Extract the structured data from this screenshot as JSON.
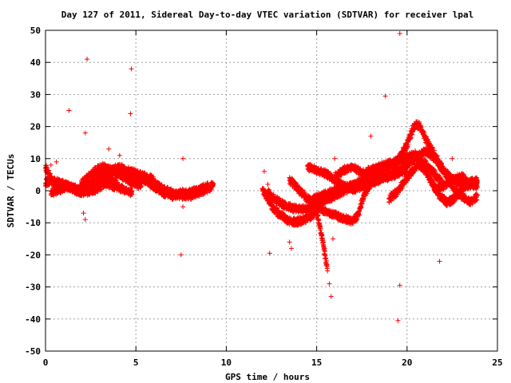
{
  "chart_data": {
    "type": "scatter",
    "title": "Day 127 of 2011, Sidereal Day-to-day VTEC variation (SDTVAR) for receiver lpal",
    "xlabel": "GPS time / hours",
    "ylabel": "SDTVAR / TECUs",
    "xlim": [
      0,
      25
    ],
    "ylim": [
      -50,
      50
    ],
    "xticks": [
      0,
      5,
      10,
      15,
      20,
      25
    ],
    "yticks": [
      -50,
      -40,
      -30,
      -20,
      -10,
      0,
      10,
      20,
      30,
      40,
      50
    ],
    "grid": true,
    "marker": "+",
    "color": "#ff0000",
    "tracks": [
      {
        "x": [
          0.0,
          0.5,
          1.0,
          1.5,
          2.0,
          2.5,
          3.0,
          3.5,
          4.0,
          4.5,
          5.0,
          5.5,
          6.0
        ],
        "y": [
          7,
          1,
          2,
          0,
          -1,
          1,
          3,
          5,
          7,
          6,
          5,
          4,
          3
        ]
      },
      {
        "x": [
          0.3,
          0.8,
          1.3,
          1.8,
          2.3,
          2.8,
          3.3,
          3.8,
          4.3,
          4.8,
          5.3
        ],
        "y": [
          -1,
          0,
          1,
          0,
          2,
          3,
          5,
          6,
          4,
          2,
          1
        ]
      },
      {
        "x": [
          0.0,
          0.4,
          0.8,
          1.2,
          1.6,
          2.0,
          2.4,
          2.8,
          3.2,
          3.6,
          4.0
        ],
        "y": [
          2,
          3,
          2,
          1,
          0,
          -1,
          0,
          1,
          2,
          3,
          2
        ]
      },
      {
        "x": [
          2.0,
          2.4,
          2.8,
          3.2,
          3.6,
          4.0,
          4.5,
          5.0,
          5.5,
          6.0,
          6.5,
          7.0,
          7.5,
          8.0,
          8.5,
          9.0,
          9.3
        ],
        "y": [
          2,
          4,
          6,
          7,
          6,
          5,
          5,
          4,
          3,
          2,
          0,
          -1,
          -2,
          -2,
          -1,
          0,
          2
        ]
      },
      {
        "x": [
          5.0,
          5.5,
          6.0,
          6.5,
          7.0,
          7.5,
          8.0,
          8.5,
          9.0
        ],
        "y": [
          4,
          3,
          1,
          -1,
          -2,
          -1,
          -1,
          0,
          1
        ]
      },
      {
        "x": [
          2.3,
          2.8,
          3.3,
          3.8,
          4.3,
          4.8
        ],
        "y": [
          -1,
          0,
          2,
          1,
          0,
          -1
        ]
      },
      {
        "x": [
          12.0,
          12.3,
          12.6,
          13.0,
          13.5,
          14.0,
          14.5,
          15.0,
          15.3,
          15.6
        ],
        "y": [
          0,
          -3,
          -6,
          -8,
          -10,
          -10,
          -9,
          -7,
          -15,
          -25
        ]
      },
      {
        "x": [
          12.3,
          12.7,
          13.2,
          13.8,
          14.5,
          15.2,
          16.0,
          16.7,
          17.3,
          17.8,
          18.4,
          19.0,
          19.5,
          20.0,
          20.4,
          20.7,
          21.0,
          21.4,
          21.8,
          22.2,
          22.6,
          23.0,
          23.5,
          23.9
        ],
        "y": [
          -1,
          -3,
          -5,
          -6,
          -6,
          -4,
          -2,
          0,
          2,
          5,
          6,
          7,
          9,
          14,
          20,
          20,
          16,
          12,
          8,
          4,
          0,
          -2,
          -4,
          -2
        ]
      },
      {
        "x": [
          13.5,
          14.0,
          14.5,
          15.0,
          15.5,
          16.0,
          16.5,
          17.0,
          17.3,
          17.6,
          18.0,
          18.5,
          19.0
        ],
        "y": [
          3,
          0,
          -3,
          -5,
          -7,
          -8,
          -9,
          -10,
          -8,
          -2,
          2,
          6,
          8
        ]
      },
      {
        "x": [
          14.5,
          15.0,
          15.5,
          16.0,
          16.5,
          17.0,
          17.5,
          18.0,
          18.5,
          19.0,
          19.5,
          20.0
        ],
        "y": [
          7,
          6,
          5,
          3,
          1,
          0,
          1,
          2,
          3,
          4,
          5,
          6
        ]
      },
      {
        "x": [
          14.8,
          15.2,
          15.7,
          16.2,
          16.8,
          17.5,
          18.2,
          19.0,
          19.8,
          20.5,
          21.0,
          21.5,
          22.0,
          22.5,
          23.0,
          23.5,
          23.9
        ],
        "y": [
          -3,
          -2,
          -1,
          0,
          1,
          2,
          3,
          4,
          7,
          10,
          12,
          10,
          6,
          3,
          2,
          1,
          2
        ]
      },
      {
        "x": [
          16.0,
          16.5,
          17.0,
          17.5,
          18.0,
          18.5,
          19.0,
          19.5,
          20.0,
          20.5,
          21.0,
          21.5,
          22.0
        ],
        "y": [
          4,
          6,
          7,
          5,
          6,
          7,
          8,
          9,
          10,
          11,
          8,
          5,
          2
        ]
      },
      {
        "x": [
          19.0,
          19.4,
          19.8,
          20.2,
          20.6,
          21.0,
          21.4,
          21.8,
          22.2,
          22.6,
          23.0,
          23.4,
          23.9
        ],
        "y": [
          -3,
          -1,
          2,
          5,
          8,
          6,
          2,
          -2,
          -4,
          -3,
          0,
          2,
          3
        ]
      },
      {
        "x": [
          21.5,
          22.0,
          22.5,
          23.0,
          23.5,
          23.9
        ],
        "y": [
          0,
          1,
          3,
          4,
          2,
          1
        ]
      }
    ],
    "outliers": {
      "x": [
        0.1,
        0.3,
        0.6,
        1.3,
        2.2,
        2.3,
        3.5,
        4.1,
        4.7,
        4.75,
        2.1,
        2.2,
        7.6,
        7.6,
        7.5,
        12.1,
        12.3,
        12.4,
        13.5,
        13.6,
        15.7,
        15.8,
        15.6,
        18.0,
        18.8,
        19.6,
        19.7,
        19.6,
        19.5,
        21.8,
        22.5,
        23.0,
        15.9,
        16.0,
        5.8
      ],
      "y": [
        4,
        8,
        9,
        25,
        18,
        41,
        13,
        11,
        24,
        38,
        -7,
        -9,
        10,
        -5,
        -20,
        6,
        2,
        -19.5,
        -16,
        -18,
        -29,
        -33,
        -25,
        17,
        29.5,
        49,
        9,
        -29.5,
        -40.5,
        -22,
        10,
        0,
        -15,
        10,
        5
      ]
    }
  }
}
